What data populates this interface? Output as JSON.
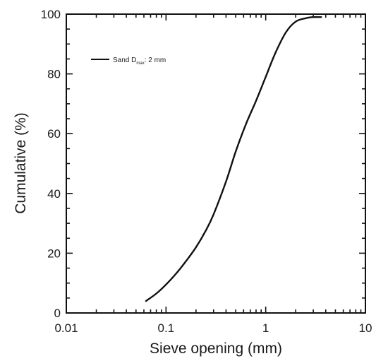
{
  "chart_data": {
    "type": "line",
    "title": "",
    "xlabel": "Sieve opening (mm)",
    "ylabel": "Cumulative (%)",
    "xscale": "log",
    "xlim": [
      0.01,
      10
    ],
    "ylim": [
      0,
      100
    ],
    "xticks": [
      0.01,
      0.1,
      1,
      10
    ],
    "xtick_labels": [
      "0.01",
      "0.1",
      "1",
      "10"
    ],
    "yticks": [
      0,
      20,
      40,
      60,
      80,
      100
    ],
    "ytick_labels": [
      "0",
      "20",
      "40",
      "60",
      "80",
      "100"
    ],
    "grid": false,
    "legend_position": "top-left",
    "legend": {
      "label_main": "Sand D",
      "label_sub": "max",
      "label_tail": ": 2 mm"
    },
    "series": [
      {
        "name": "Sand Dmax: 2 mm",
        "color": "#111111",
        "x": [
          0.063,
          0.08,
          0.1,
          0.125,
          0.16,
          0.2,
          0.25,
          0.3,
          0.4,
          0.5,
          0.63,
          0.8,
          1.0,
          1.25,
          1.6,
          2.0,
          2.5,
          3.0,
          3.6
        ],
        "y": [
          4,
          6.5,
          9.5,
          13,
          17.5,
          22,
          27.5,
          33,
          44,
          54,
          63,
          71,
          79,
          87,
          94,
          97.5,
          98.6,
          99,
          99
        ]
      }
    ]
  }
}
